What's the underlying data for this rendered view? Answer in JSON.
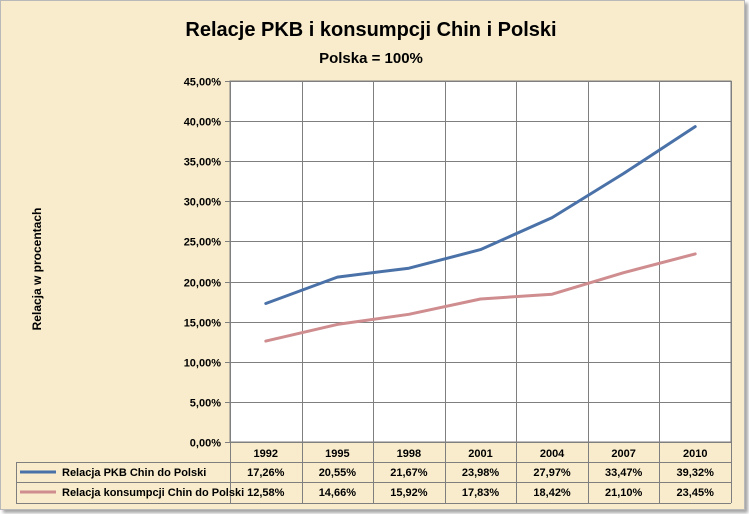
{
  "chart_data": {
    "type": "line",
    "title": "Relacje PKB i konsumpcji Chin i Polski",
    "subtitle": "Polska = 100%",
    "ylabel": "Relacja w procentach",
    "xlabel": "",
    "categories": [
      "1992",
      "1995",
      "1998",
      "2001",
      "2004",
      "2007",
      "2010"
    ],
    "ylim": [
      0,
      45
    ],
    "ytick_step": 5,
    "ytick_labels": [
      "0,00%",
      "5,00%",
      "10,00%",
      "15,00%",
      "20,00%",
      "25,00%",
      "30,00%",
      "35,00%",
      "40,00%",
      "45,00%"
    ],
    "grid": true,
    "legend": "data-table",
    "series": [
      {
        "name": "Relacja  PKB Chin do Polski",
        "color": "#4a72a8",
        "values": [
          17.26,
          20.55,
          21.67,
          23.98,
          27.97,
          33.47,
          39.32
        ],
        "labels": [
          "17,26%",
          "20,55%",
          "21,67%",
          "23,98%",
          "27,97%",
          "33,47%",
          "39,32%"
        ]
      },
      {
        "name": "Relacja  konsumpcji Chin do Polski",
        "color": "#cf8d8f",
        "values": [
          12.58,
          14.66,
          15.92,
          17.83,
          18.42,
          21.1,
          23.45
        ],
        "labels": [
          "12,58%",
          "14,66%",
          "15,92%",
          "17,83%",
          "18,42%",
          "21,10%",
          "23,45%"
        ]
      }
    ]
  }
}
